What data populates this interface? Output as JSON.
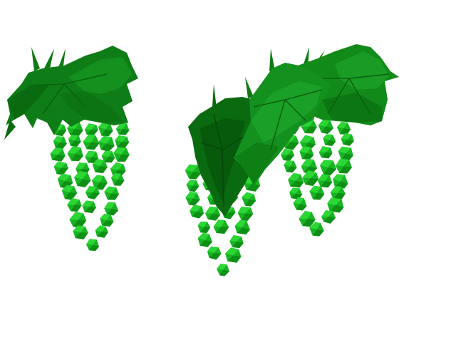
{
  "scene": {
    "background": "#ffffff",
    "colors": {
      "leaf_dark": "#0a6a10",
      "leaf_mid": "#118a1a",
      "leaf_light": "#1fa52a",
      "leaf_shadow": "#075a0b",
      "grape_dark": "#0d8f15",
      "grape_mid": "#18b322",
      "grape_light": "#2bd635",
      "stem": "#0f7a14"
    },
    "clusters": [
      {
        "name": "left-grape-cluster",
        "grape_count": 38
      },
      {
        "name": "center-grape-cluster",
        "grape_count": 34
      },
      {
        "name": "right-grape-cluster",
        "grape_count": 40
      }
    ],
    "leaves": [
      {
        "name": "left-vine-leaf"
      },
      {
        "name": "center-dark-vine-leaf"
      },
      {
        "name": "center-vine-leaf"
      },
      {
        "name": "right-vine-leaf"
      }
    ]
  }
}
